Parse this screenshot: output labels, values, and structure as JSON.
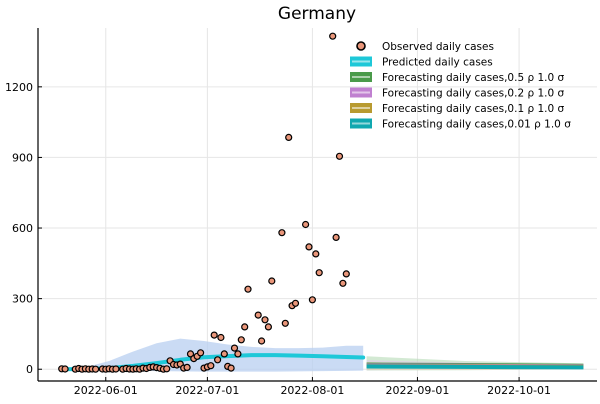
{
  "chart_data": {
    "type": "scatter",
    "title": "Germany",
    "xlabel": "",
    "ylabel": "",
    "x_range": [
      "2022-05-12",
      "2022-10-24"
    ],
    "ylim": [
      -50,
      1450
    ],
    "grid": true,
    "legend_position": "top-right",
    "x_ticks": [
      "2022-06-01",
      "2022-07-01",
      "2022-08-01",
      "2022-09-01",
      "2022-10-01"
    ],
    "y_ticks": [
      0,
      300,
      600,
      900,
      1200
    ],
    "legend": [
      {
        "label": "Observed daily cases",
        "kind": "marker",
        "color": "#e9967a"
      },
      {
        "label": "Predicted daily cases",
        "kind": "band",
        "color": "#1ec8d8"
      },
      {
        "label": "Forecasting daily cases,0.5 ρ 1.0 σ",
        "kind": "band",
        "color": "#4a9a4a"
      },
      {
        "label": "Forecasting daily cases,0.2 ρ 1.0 σ",
        "kind": "band",
        "color": "#c080d0"
      },
      {
        "label": "Forecasting daily cases,0.1 ρ 1.0 σ",
        "kind": "band",
        "color": "#b89a30"
      },
      {
        "label": "Forecasting daily cases,0.01 ρ 1.0 σ",
        "kind": "band",
        "color": "#10a8b0"
      }
    ],
    "observed": {
      "name": "Observed daily cases",
      "color": "#e9967a",
      "points": [
        {
          "x": "2022-05-19",
          "y": 2
        },
        {
          "x": "2022-05-20",
          "y": 1
        },
        {
          "x": "2022-05-23",
          "y": 0
        },
        {
          "x": "2022-05-24",
          "y": 3
        },
        {
          "x": "2022-05-25",
          "y": 0
        },
        {
          "x": "2022-05-26",
          "y": 2
        },
        {
          "x": "2022-05-27",
          "y": 0
        },
        {
          "x": "2022-05-28",
          "y": 1
        },
        {
          "x": "2022-05-29",
          "y": 0
        },
        {
          "x": "2022-05-31",
          "y": 1
        },
        {
          "x": "2022-06-01",
          "y": 0
        },
        {
          "x": "2022-06-02",
          "y": 2
        },
        {
          "x": "2022-06-03",
          "y": 0
        },
        {
          "x": "2022-06-04",
          "y": 1
        },
        {
          "x": "2022-06-06",
          "y": 0
        },
        {
          "x": "2022-06-07",
          "y": 3
        },
        {
          "x": "2022-06-08",
          "y": 1
        },
        {
          "x": "2022-06-09",
          "y": 0
        },
        {
          "x": "2022-06-10",
          "y": 2
        },
        {
          "x": "2022-06-11",
          "y": 0
        },
        {
          "x": "2022-06-12",
          "y": 5
        },
        {
          "x": "2022-06-13",
          "y": 3
        },
        {
          "x": "2022-06-14",
          "y": 8
        },
        {
          "x": "2022-06-15",
          "y": 10
        },
        {
          "x": "2022-06-16",
          "y": 7
        },
        {
          "x": "2022-06-17",
          "y": 4
        },
        {
          "x": "2022-06-18",
          "y": 0
        },
        {
          "x": "2022-06-19",
          "y": 2
        },
        {
          "x": "2022-06-20",
          "y": 36
        },
        {
          "x": "2022-06-21",
          "y": 20
        },
        {
          "x": "2022-06-22",
          "y": 18
        },
        {
          "x": "2022-06-23",
          "y": 22
        },
        {
          "x": "2022-06-24",
          "y": 5
        },
        {
          "x": "2022-06-25",
          "y": 8
        },
        {
          "x": "2022-06-26",
          "y": 65
        },
        {
          "x": "2022-06-27",
          "y": 45
        },
        {
          "x": "2022-06-28",
          "y": 55
        },
        {
          "x": "2022-06-29",
          "y": 70
        },
        {
          "x": "2022-06-30",
          "y": 5
        },
        {
          "x": "2022-07-01",
          "y": 10
        },
        {
          "x": "2022-07-02",
          "y": 15
        },
        {
          "x": "2022-07-03",
          "y": 145
        },
        {
          "x": "2022-07-04",
          "y": 40
        },
        {
          "x": "2022-07-05",
          "y": 135
        },
        {
          "x": "2022-07-06",
          "y": 65
        },
        {
          "x": "2022-07-07",
          "y": 12
        },
        {
          "x": "2022-07-08",
          "y": 5
        },
        {
          "x": "2022-07-09",
          "y": 90
        },
        {
          "x": "2022-07-10",
          "y": 65
        },
        {
          "x": "2022-07-11",
          "y": 125
        },
        {
          "x": "2022-07-12",
          "y": 180
        },
        {
          "x": "2022-07-13",
          "y": 340
        },
        {
          "x": "2022-07-16",
          "y": 230
        },
        {
          "x": "2022-07-17",
          "y": 120
        },
        {
          "x": "2022-07-18",
          "y": 210
        },
        {
          "x": "2022-07-19",
          "y": 180
        },
        {
          "x": "2022-07-20",
          "y": 375
        },
        {
          "x": "2022-07-23",
          "y": 580
        },
        {
          "x": "2022-07-24",
          "y": 195
        },
        {
          "x": "2022-07-25",
          "y": 985
        },
        {
          "x": "2022-07-26",
          "y": 270
        },
        {
          "x": "2022-07-27",
          "y": 280
        },
        {
          "x": "2022-07-30",
          "y": 615
        },
        {
          "x": "2022-07-31",
          "y": 520
        },
        {
          "x": "2022-08-01",
          "y": 295
        },
        {
          "x": "2022-08-02",
          "y": 490
        },
        {
          "x": "2022-08-03",
          "y": 410
        },
        {
          "x": "2022-08-07",
          "y": 1415
        },
        {
          "x": "2022-08-08",
          "y": 560
        },
        {
          "x": "2022-08-09",
          "y": 905
        },
        {
          "x": "2022-08-10",
          "y": 365
        },
        {
          "x": "2022-08-11",
          "y": 405
        }
      ]
    },
    "predicted": {
      "name": "Predicted daily cases",
      "color": "#1ec8d8",
      "band_color": "#b8cff0",
      "x": [
        "2022-05-19",
        "2022-05-26",
        "2022-06-02",
        "2022-06-09",
        "2022-06-16",
        "2022-06-23",
        "2022-06-30",
        "2022-07-07",
        "2022-07-14",
        "2022-07-21",
        "2022-07-28",
        "2022-08-04",
        "2022-08-11",
        "2022-08-16"
      ],
      "mean": [
        0,
        1,
        5,
        14,
        26,
        40,
        51,
        56,
        60,
        60,
        58,
        55,
        52,
        50
      ],
      "lower": [
        0,
        -2,
        -4,
        -6,
        -8,
        -9,
        -10,
        -10,
        -10,
        -10,
        -9,
        -8,
        -7,
        -6
      ],
      "upper": [
        1,
        8,
        35,
        75,
        110,
        130,
        120,
        105,
        95,
        90,
        90,
        92,
        100,
        100
      ]
    },
    "forecasts": [
      {
        "name": "Forecasting daily cases,0.5 ρ 1.0 σ",
        "color": "#4a9a4a",
        "band_color": "#b5dbb5",
        "x": [
          "2022-08-17",
          "2022-09-15",
          "2022-10-20"
        ],
        "mean": [
          20,
          18,
          15
        ],
        "lower": [
          -6,
          -4,
          0
        ],
        "upper": [
          55,
          35,
          25
        ]
      },
      {
        "name": "Forecasting daily cases,0.2 ρ 1.0 σ",
        "color": "#c080d0",
        "band_color": "#e4c8ee",
        "x": [
          "2022-08-17",
          "2022-09-15",
          "2022-10-20"
        ],
        "mean": [
          16,
          15,
          12
        ],
        "lower": [
          -4,
          -3,
          0
        ],
        "upper": [
          38,
          28,
          20
        ]
      },
      {
        "name": "Forecasting daily cases,0.1 ρ 1.0 σ",
        "color": "#b89a30",
        "band_color": "#e6d69c",
        "x": [
          "2022-08-17",
          "2022-09-15",
          "2022-10-20"
        ],
        "mean": [
          13,
          12,
          10
        ],
        "lower": [
          -3,
          -2,
          0
        ],
        "upper": [
          30,
          22,
          16
        ]
      },
      {
        "name": "Forecasting daily cases,0.01 ρ 1.0 σ",
        "color": "#10a8b0",
        "band_color": "#9ed9dc",
        "x": [
          "2022-08-17",
          "2022-09-15",
          "2022-10-20"
        ],
        "mean": [
          12,
          10,
          8
        ],
        "lower": [
          0,
          1,
          2
        ],
        "upper": [
          20,
          16,
          12
        ]
      }
    ]
  }
}
